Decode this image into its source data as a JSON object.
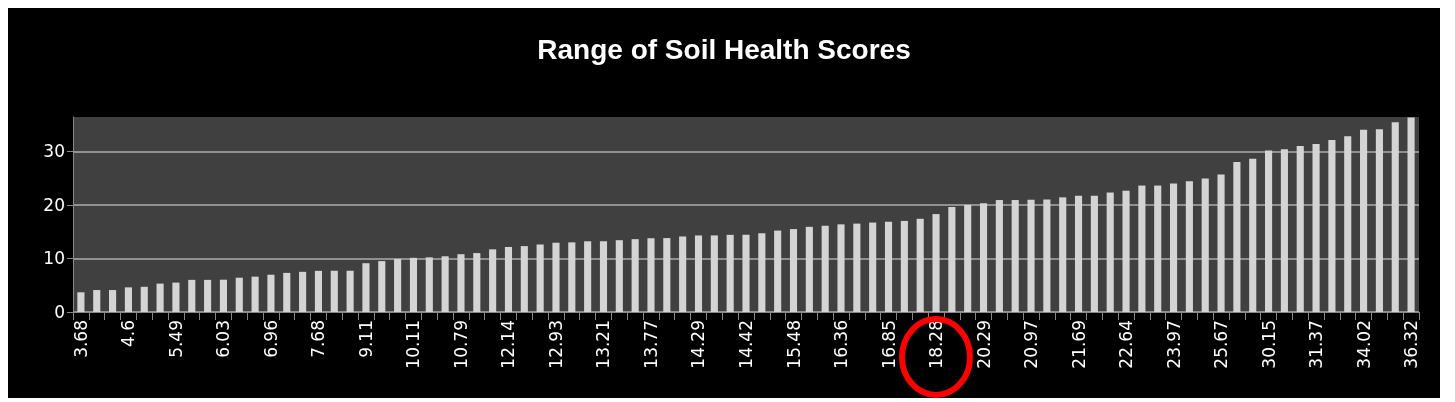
{
  "chart_data": {
    "type": "bar",
    "title": "Range of Soil Health Scores",
    "categories": [
      "3.68",
      null,
      null,
      "4.6",
      null,
      null,
      "5.49",
      null,
      null,
      "6.03",
      null,
      null,
      "6.96",
      null,
      null,
      "7.68",
      null,
      null,
      "9.11",
      null,
      null,
      "10.11",
      null,
      null,
      "10.79",
      null,
      null,
      "12.14",
      null,
      null,
      "12.93",
      null,
      null,
      "13.21",
      null,
      null,
      "13.77",
      null,
      null,
      "14.29",
      null,
      null,
      "14.42",
      null,
      null,
      "15.48",
      null,
      null,
      "16.36",
      null,
      null,
      "16.85",
      null,
      null,
      "18.28",
      null,
      null,
      "20.29",
      null,
      null,
      "20.97",
      null,
      null,
      "21.69",
      null,
      null,
      "22.64",
      null,
      null,
      "23.97",
      null,
      null,
      "25.67",
      null,
      null,
      "30.15",
      null,
      null,
      "31.37",
      null,
      null,
      "34.02",
      null,
      null,
      "36.32"
    ],
    "values": [
      3.68,
      4.1,
      4.1,
      4.6,
      4.7,
      5.3,
      5.49,
      6.0,
      6.0,
      6.03,
      6.4,
      6.6,
      6.96,
      7.3,
      7.5,
      7.68,
      7.7,
      7.7,
      9.11,
      9.5,
      9.9,
      10.11,
      10.2,
      10.4,
      10.79,
      11.0,
      11.7,
      12.14,
      12.3,
      12.6,
      12.93,
      13.0,
      13.2,
      13.21,
      13.4,
      13.6,
      13.77,
      13.8,
      14.1,
      14.29,
      14.3,
      14.4,
      14.42,
      14.7,
      15.2,
      15.48,
      15.9,
      16.1,
      16.36,
      16.5,
      16.7,
      16.85,
      17.0,
      17.4,
      18.28,
      19.6,
      20.0,
      20.29,
      20.9,
      20.9,
      20.97,
      21.0,
      21.4,
      21.69,
      21.7,
      22.3,
      22.64,
      23.6,
      23.6,
      23.97,
      24.4,
      24.9,
      25.67,
      28.0,
      28.6,
      30.15,
      30.4,
      31.0,
      31.37,
      32.1,
      32.8,
      34.02,
      34.1,
      35.4,
      36.32
    ],
    "color": "#d4d4d4",
    "ylim": [
      0,
      36.4
    ],
    "yticks": [
      0,
      10,
      20,
      30
    ],
    "grid": "y"
  }
}
